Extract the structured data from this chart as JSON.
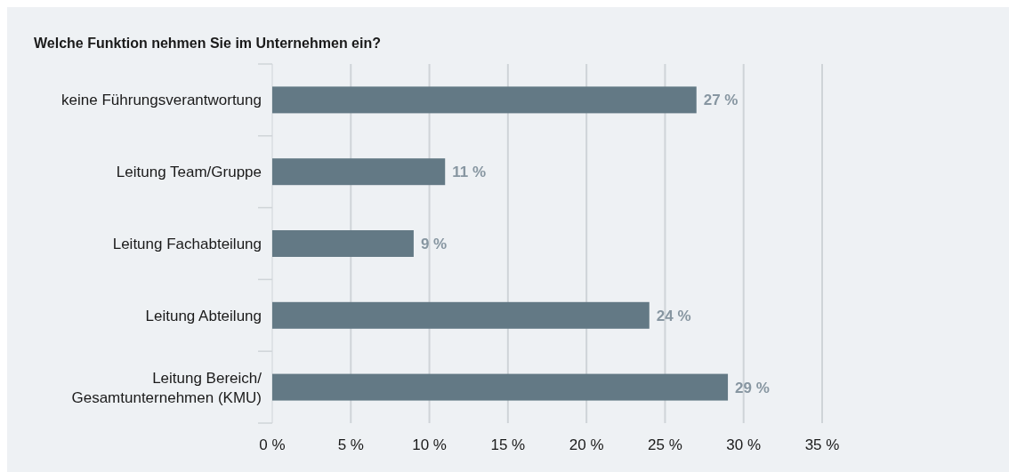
{
  "chart_data": {
    "type": "bar",
    "orientation": "horizontal",
    "title": "Welche Funktion nehmen Sie im Unternehmen ein?",
    "categories": [
      "keine Führungsverantwortung",
      "Leitung Team/Gruppe",
      "Leitung Fachabteilung",
      "Leitung Abteilung",
      "Leitung Bereich/\nGesamtunternehmen (KMU)"
    ],
    "values": [
      27,
      11,
      9,
      24,
      29
    ],
    "color": "#637985",
    "value_labels": [
      "27 %",
      "11 %",
      "9 %",
      "24 %",
      "29 %"
    ],
    "xlim": [
      0,
      35
    ],
    "xticks": [
      {
        "value": 0,
        "label": "0 %"
      },
      {
        "value": 5,
        "label": "5 %"
      },
      {
        "value": 10,
        "label": "10 %"
      },
      {
        "value": 15,
        "label": "15 %"
      },
      {
        "value": 20,
        "label": "20 %"
      },
      {
        "value": 25,
        "label": "25 %"
      },
      {
        "value": 30,
        "label": "30 %"
      },
      {
        "value": 35,
        "label": "35 %"
      }
    ],
    "grid": "x"
  }
}
